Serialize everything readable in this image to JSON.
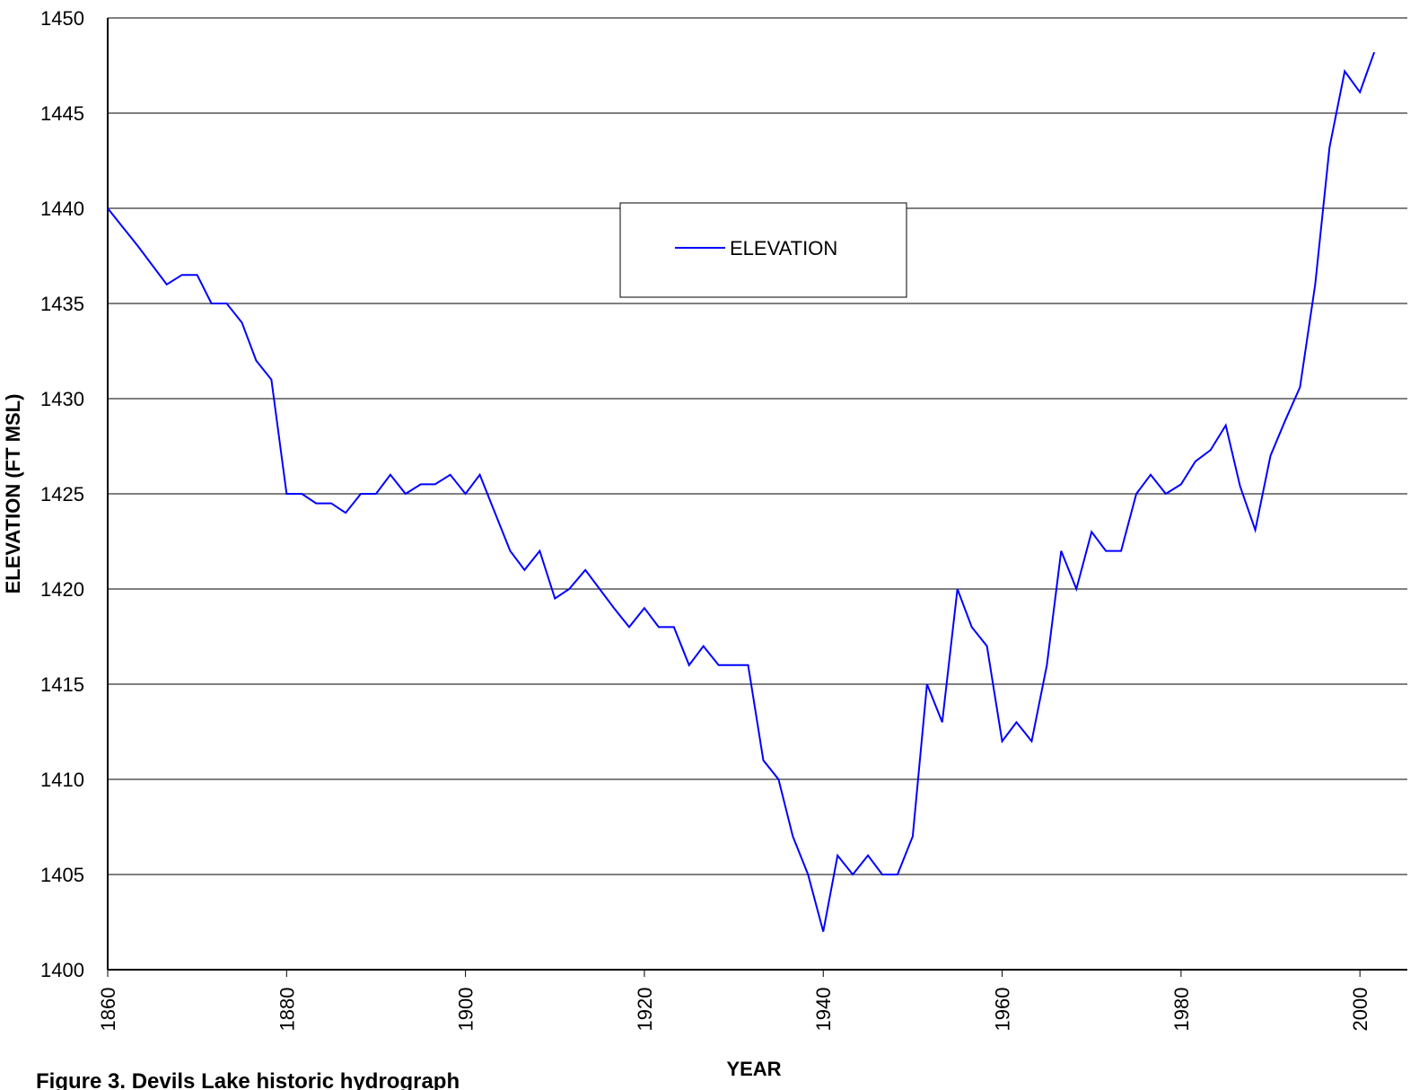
{
  "chart_data": {
    "type": "line",
    "x_label": "YEAR",
    "y_label": "ELEVATION (FT MSL)",
    "caption": "Figure 3. Devils Lake historic hydrograph",
    "xlim": [
      1860,
      2005.3
    ],
    "xticks": [
      1860,
      1880,
      1900,
      1920,
      1940,
      1960,
      1980,
      2000
    ],
    "ylim": [
      1400,
      1450
    ],
    "yticks": [
      1400,
      1405,
      1410,
      1415,
      1420,
      1425,
      1430,
      1435,
      1440,
      1445,
      1450
    ],
    "grid": true,
    "legend": "top-center",
    "x": [
      1860,
      1861.7,
      1863.4,
      1865,
      1866.6,
      1868.3,
      1870,
      1871.6,
      1873.3,
      1875,
      1876.6,
      1878.3,
      1880,
      1881.7,
      1883.3,
      1885,
      1886.6,
      1888.3,
      1890,
      1891.6,
      1893.3,
      1895,
      1896.6,
      1898.3,
      1900,
      1901.6,
      1903.3,
      1905,
      1906.6,
      1908.3,
      1910,
      1911.6,
      1913.4,
      1915,
      1916.6,
      1918.3,
      1920,
      1921.6,
      1923.3,
      1925,
      1926.6,
      1928.3,
      1930,
      1931.6,
      1933.3,
      1935,
      1936.6,
      1938.3,
      1940,
      1941.6,
      1943.3,
      1945,
      1946.6,
      1948.3,
      1950,
      1951.6,
      1953.3,
      1955,
      1956.6,
      1958.3,
      1960,
      1961.6,
      1963.3,
      1965,
      1966.6,
      1968.3,
      1970,
      1971.6,
      1973.3,
      1975,
      1976.6,
      1978.3,
      1980,
      1981.6,
      1983.3,
      1985,
      1986.6,
      1988.3,
      1990,
      1991.6,
      1993.3,
      1995,
      1996.6,
      1998.3,
      2000,
      2001.6
    ],
    "series": [
      {
        "name": "ELEVATION",
        "color": "#0000ff",
        "values": [
          1440,
          1439,
          1438,
          1437,
          1436,
          1436.5,
          1436.5,
          1435,
          1435,
          1434,
          1432,
          1431,
          1425,
          1425,
          1424.5,
          1424.5,
          1424,
          1425,
          1425,
          1426,
          1425,
          1425.5,
          1425.5,
          1426,
          1425,
          1426,
          1424,
          1422,
          1421,
          1422,
          1419.5,
          1420,
          1421,
          1420,
          1419,
          1418,
          1419,
          1418,
          1418,
          1416,
          1417,
          1416,
          1416,
          1416,
          1411,
          1410,
          1407,
          1405,
          1402,
          1406,
          1405,
          1406,
          1405,
          1405,
          1407,
          1415,
          1413,
          1420,
          1418,
          1417,
          1412,
          1413,
          1412,
          1416,
          1422,
          1420,
          1423,
          1422,
          1422,
          1425,
          1426,
          1425,
          1425.5,
          1426.7,
          1427.3,
          1428.6,
          1425.4,
          1423.1,
          1427,
          1428.8,
          1430.6,
          1436,
          1443.2,
          1447.2,
          1446.1,
          1448.2
        ]
      }
    ]
  }
}
